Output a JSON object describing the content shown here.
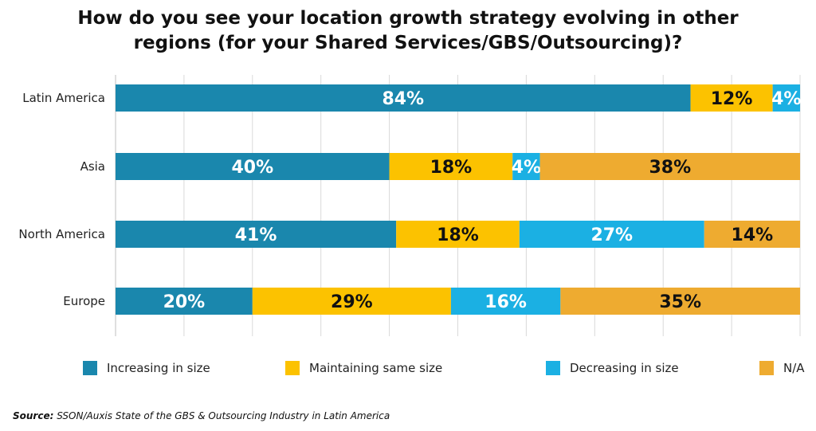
{
  "chart_data": {
    "type": "bar",
    "orientation": "horizontal",
    "stacked": true,
    "title_lines": [
      "How do you see your location growth strategy evolving in other",
      "regions (for your Shared Services/GBS/Outsourcing)?"
    ],
    "categories": [
      "Latin America",
      "Asia",
      "North America",
      "Europe"
    ],
    "series": [
      {
        "name": "Increasing in size",
        "color": "#1a87ad",
        "label_color": "#ffffff",
        "values": [
          84,
          40,
          41,
          20
        ]
      },
      {
        "name": "Maintaining same size",
        "color": "#fcc200",
        "label_color": "#111111",
        "values": [
          12,
          18,
          18,
          29
        ]
      },
      {
        "name": "Decreasing in size",
        "color": "#1bb0e3",
        "label_color": "#ffffff",
        "values": [
          4,
          4,
          27,
          16
        ]
      },
      {
        "name": "N/A",
        "color": "#eeab30",
        "label_color": "#111111",
        "values": [
          0,
          38,
          14,
          35
        ]
      }
    ],
    "value_suffix": "%",
    "xlim": [
      0,
      100
    ],
    "grid": true,
    "legend_position": "bottom"
  },
  "source": {
    "prefix": "Source:",
    "text": "SSON/Auxis State of the GBS & Outsourcing Industry in Latin America"
  }
}
